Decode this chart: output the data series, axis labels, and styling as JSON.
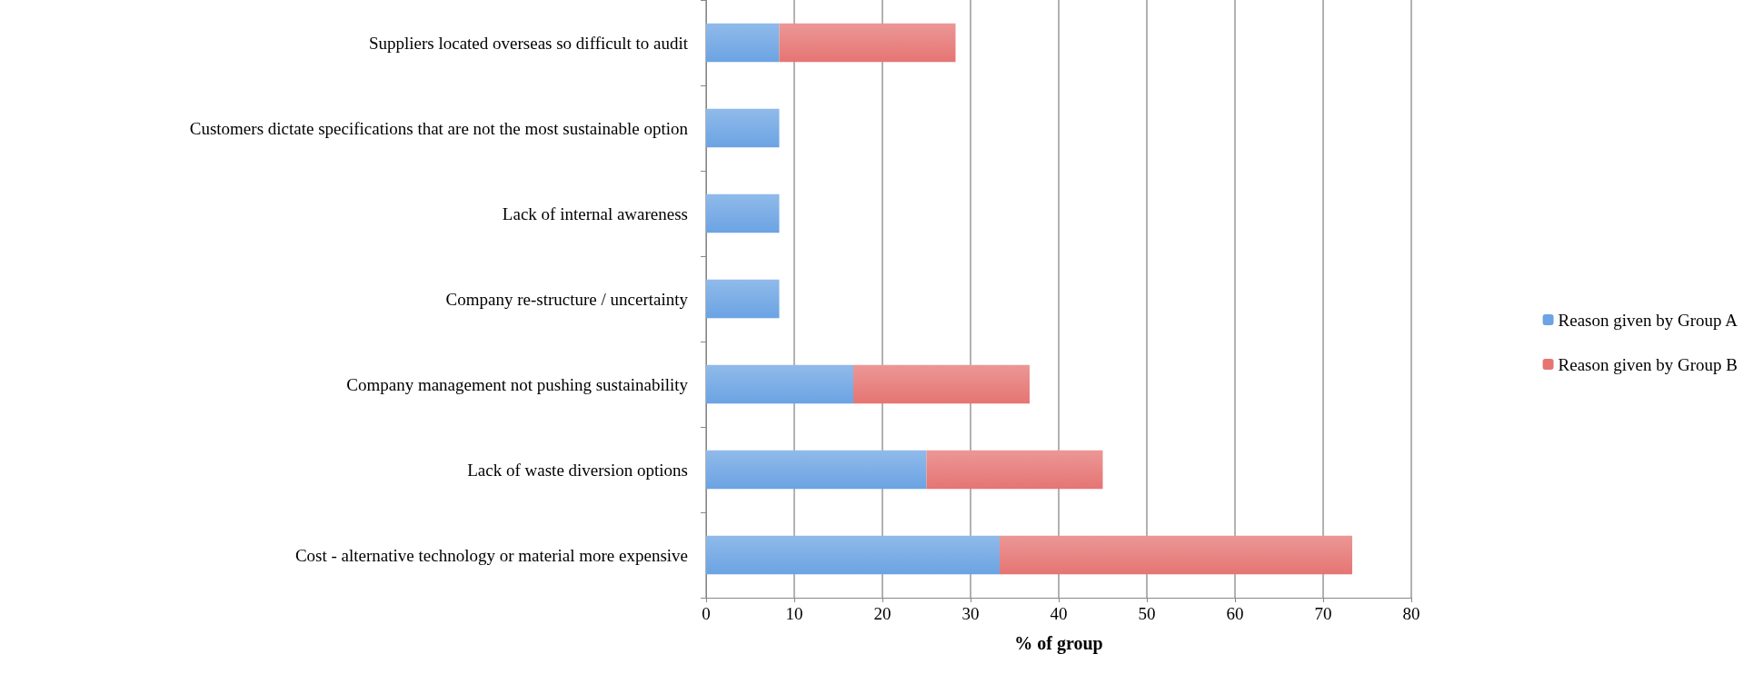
{
  "chart_data": {
    "type": "bar",
    "orientation": "horizontal",
    "stacked": true,
    "xlabel": "% of group",
    "categories": [
      "Suppliers located overseas so difficult to audit",
      "Customers dictate specifications that are not the most sustainable option",
      "Lack of internal awareness",
      "Company re-structure / uncertainty",
      "Company management not pushing sustainability",
      "Lack of waste diversion options",
      "Cost - alternative technology or material more expensive"
    ],
    "series": [
      {
        "name": "Reason given by Group A",
        "color": "#6ba3e3",
        "values": [
          8.3,
          8.3,
          8.3,
          8.3,
          16.7,
          25,
          33.3
        ]
      },
      {
        "name": "Reason given by Group B",
        "color": "#e57573",
        "values": [
          20,
          null,
          null,
          null,
          20,
          20,
          40
        ]
      }
    ],
    "xlim": [
      0,
      80
    ],
    "xticks": [
      0,
      10,
      20,
      30,
      40,
      50,
      60,
      70,
      80
    ],
    "grid": "x",
    "legend": "right"
  }
}
